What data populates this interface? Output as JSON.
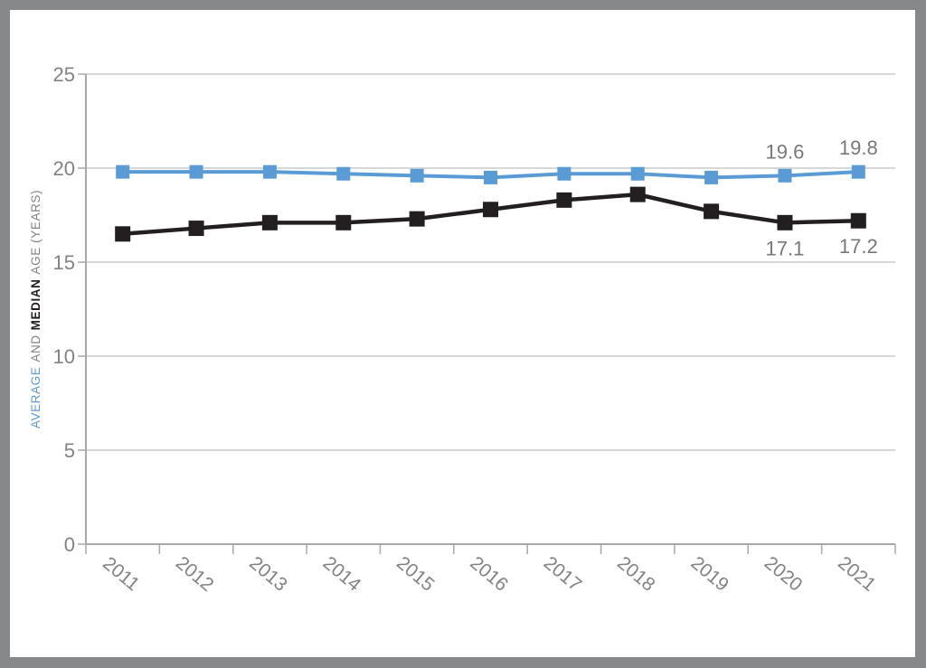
{
  "chart_data": {
    "type": "line",
    "title": "",
    "ylabel_parts": [
      {
        "text": "AVERAGE",
        "color": "#5B9BD5",
        "bold": false
      },
      {
        "text": "AND",
        "color": "#808285",
        "bold": false
      },
      {
        "text": "MEDIAN",
        "color": "#231F20",
        "bold": true
      },
      {
        "text": "AGE (YEARS)",
        "color": "#808285",
        "bold": false
      }
    ],
    "categories": [
      "2011",
      "2012",
      "2013",
      "2014",
      "2015",
      "2016",
      "2017",
      "2018",
      "2019",
      "2020",
      "2021"
    ],
    "series": [
      {
        "key": "average",
        "name": "AVERAGE",
        "color": "#5B9BD5",
        "line_width": 4,
        "marker": "square",
        "marker_size": 15,
        "values": [
          19.8,
          19.8,
          19.8,
          19.7,
          19.6,
          19.5,
          19.7,
          19.7,
          19.5,
          19.6,
          19.8
        ]
      },
      {
        "key": "median",
        "name": "MEDIAN",
        "color": "#231F20",
        "line_width": 4.5,
        "marker": "square",
        "marker_size": 17,
        "values": [
          16.5,
          16.8,
          17.1,
          17.1,
          17.3,
          17.8,
          18.3,
          18.6,
          17.7,
          17.1,
          17.2
        ]
      }
    ],
    "annotations": [
      {
        "series": "average",
        "index": 9,
        "text": "19.6",
        "position": "above"
      },
      {
        "series": "average",
        "index": 10,
        "text": "19.8",
        "position": "above"
      },
      {
        "series": "median",
        "index": 9,
        "text": "17.1",
        "position": "below"
      },
      {
        "series": "median",
        "index": 10,
        "text": "17.2",
        "position": "below"
      }
    ],
    "y_ticks": [
      25,
      20,
      15,
      10,
      5,
      0
    ],
    "ylim": [
      0,
      25
    ],
    "grid": true,
    "legend_position": "none",
    "colors": {
      "grid": "#C9CACB",
      "axis": "#A6A8AB",
      "tick_text": "#808285",
      "annotation_text": "#77787B",
      "frame": "#87888A",
      "panel": "#FFFFFF"
    }
  }
}
